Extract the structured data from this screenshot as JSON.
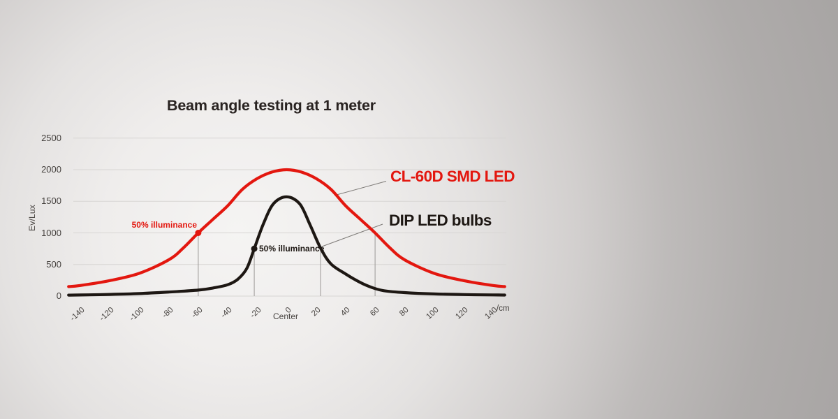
{
  "title": "Beam angle testing at 1 meter",
  "y_axis": {
    "label": "Ev/Lux",
    "ticks": [
      {
        "label": "0",
        "value": 0
      },
      {
        "label": "500",
        "value": 500
      },
      {
        "label": "1000",
        "value": 1000
      },
      {
        "label": "1500",
        "value": 1500
      },
      {
        "label": "2000",
        "value": 2000
      },
      {
        "label": "2500",
        "value": 2500
      }
    ]
  },
  "x_axis": {
    "unit_label": "/cm",
    "center_label": "Center",
    "ticks": [
      {
        "label": "-140",
        "cm": -140
      },
      {
        "label": "-120",
        "cm": -120
      },
      {
        "label": "-100",
        "cm": -100
      },
      {
        "label": "-80",
        "cm": -80
      },
      {
        "label": "-60",
        "cm": -60
      },
      {
        "label": "-40",
        "cm": -40
      },
      {
        "label": "-20",
        "cm": -20
      },
      {
        "label": "0",
        "cm": 0
      },
      {
        "label": "20",
        "cm": 20
      },
      {
        "label": "40",
        "cm": 40
      },
      {
        "label": "60",
        "cm": 60
      },
      {
        "label": "80",
        "cm": 80
      },
      {
        "label": "100",
        "cm": 100
      },
      {
        "label": "120",
        "cm": 120
      },
      {
        "label": "140",
        "cm": 140
      }
    ]
  },
  "colors": {
    "red": "#e3170f",
    "black": "#1d1713",
    "grid": "#d7d5d3",
    "drop_line": "#9b9896",
    "leader_line": "#7d7a77",
    "text_dark": "#292321"
  },
  "chart_data": {
    "type": "line",
    "title": "Beam angle testing at 1 meter",
    "xlabel": "/cm",
    "ylabel": "Ev/Lux",
    "xlim": [
      -150,
      150
    ],
    "ylim": [
      0,
      2500
    ],
    "grid": "horizontal",
    "legend_position": "right-of-curves",
    "series": [
      {
        "name": "CL-60D SMD LED",
        "color": "#e3170f",
        "points": [
          [
            -148,
            150
          ],
          [
            -140,
            168
          ],
          [
            -120,
            245
          ],
          [
            -100,
            360
          ],
          [
            -80,
            575
          ],
          [
            -70,
            765
          ],
          [
            -60,
            1000
          ],
          [
            -50,
            1215
          ],
          [
            -40,
            1430
          ],
          [
            -30,
            1690
          ],
          [
            -20,
            1860
          ],
          [
            -10,
            1962
          ],
          [
            0,
            2000
          ],
          [
            10,
            1962
          ],
          [
            20,
            1860
          ],
          [
            30,
            1690
          ],
          [
            40,
            1430
          ],
          [
            50,
            1215
          ],
          [
            60,
            1000
          ],
          [
            70,
            765
          ],
          [
            80,
            575
          ],
          [
            100,
            360
          ],
          [
            120,
            245
          ],
          [
            140,
            168
          ],
          [
            148,
            150
          ]
        ]
      },
      {
        "name": "DIP LED bulbs",
        "color": "#1d1713",
        "points": [
          [
            -148,
            16
          ],
          [
            -140,
            18
          ],
          [
            -120,
            26
          ],
          [
            -100,
            40
          ],
          [
            -80,
            64
          ],
          [
            -60,
            95
          ],
          [
            -50,
            128
          ],
          [
            -40,
            180
          ],
          [
            -33,
            270
          ],
          [
            -27,
            440
          ],
          [
            -22,
            750
          ],
          [
            -16,
            1130
          ],
          [
            -9,
            1460
          ],
          [
            0,
            1570
          ],
          [
            9,
            1455
          ],
          [
            16,
            1120
          ],
          [
            23,
            760
          ],
          [
            30,
            510
          ],
          [
            40,
            350
          ],
          [
            50,
            215
          ],
          [
            58,
            135
          ],
          [
            66,
            85
          ],
          [
            80,
            55
          ],
          [
            100,
            34
          ],
          [
            120,
            24
          ],
          [
            140,
            19
          ],
          [
            148,
            17
          ]
        ]
      }
    ],
    "annotations": {
      "red_half_marker": {
        "label": "50% illuminance",
        "x": -60,
        "y": 1000
      },
      "black_half_marker": {
        "label": "50% illuminance",
        "x": -22,
        "y": 750
      },
      "drop_lines": [
        {
          "x": -60,
          "top": 1000
        },
        {
          "x": -22,
          "top": 750
        },
        {
          "x": 23,
          "top": 760
        },
        {
          "x": 60,
          "top": 1000
        }
      ]
    }
  }
}
